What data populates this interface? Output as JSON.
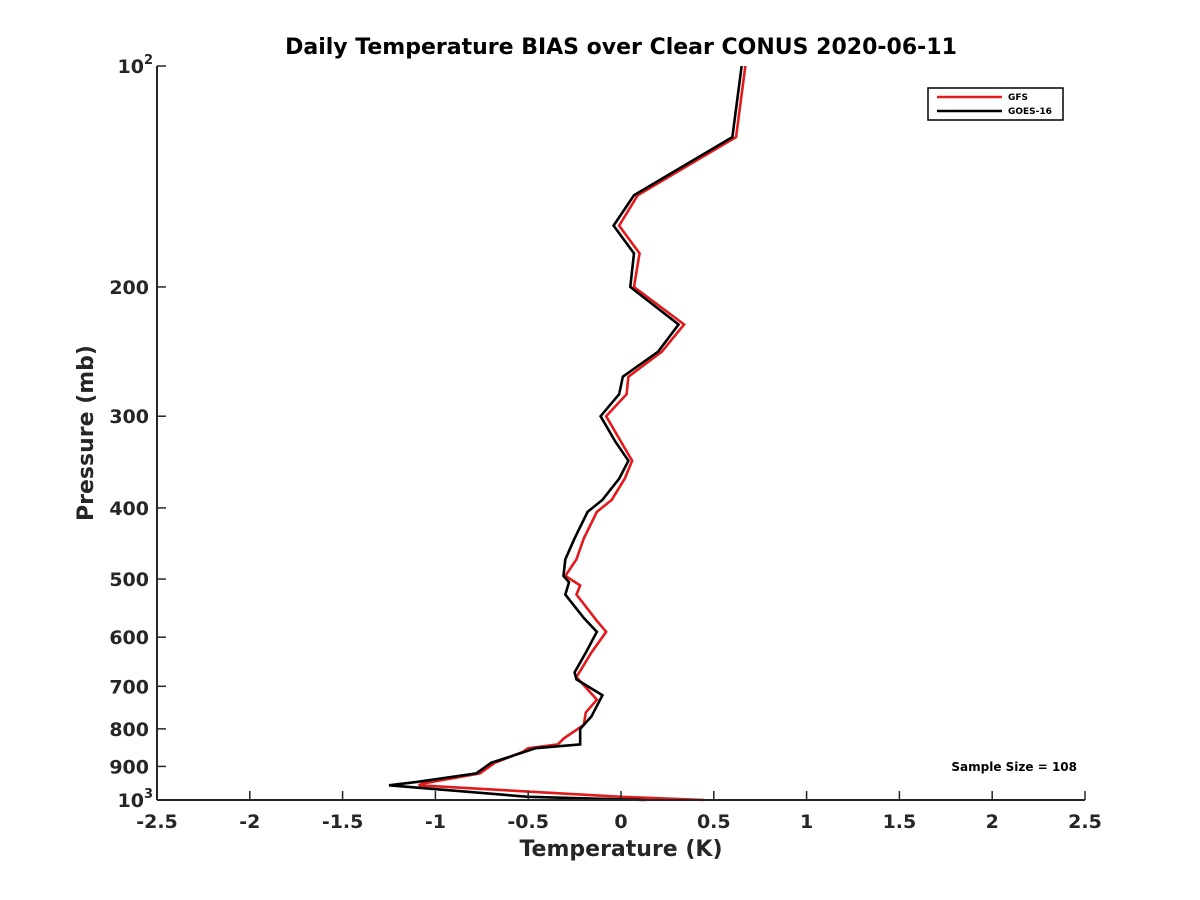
{
  "chart_data": {
    "type": "line",
    "title": "Daily Temperature BIAS over Clear CONUS 2020-06-11",
    "xlabel": "Temperature (K)",
    "ylabel": "Pressure (mb)",
    "xlim": [
      -2.5,
      2.5
    ],
    "ylim": [
      100,
      1000
    ],
    "y_scale": "log",
    "y_reversed": true,
    "x_ticks": [
      -2.5,
      -2,
      -1.5,
      -1,
      -0.5,
      0,
      0.5,
      1,
      1.5,
      2,
      2.5
    ],
    "x_tick_labels": [
      "-2.5",
      "-2",
      "-1.5",
      "-1",
      "-0.5",
      "0",
      "0.5",
      "1",
      "1.5",
      "2",
      "2.5"
    ],
    "y_ticks": [
      100,
      200,
      300,
      400,
      500,
      600,
      700,
      800,
      900,
      1000
    ],
    "y_tick_labels": [
      {
        "base": "10",
        "sup": "2"
      },
      {
        "base": "200",
        "sup": ""
      },
      {
        "base": "300",
        "sup": ""
      },
      {
        "base": "400",
        "sup": ""
      },
      {
        "base": "500",
        "sup": ""
      },
      {
        "base": "600",
        "sup": ""
      },
      {
        "base": "700",
        "sup": ""
      },
      {
        "base": "800",
        "sup": ""
      },
      {
        "base": "900",
        "sup": ""
      },
      {
        "base": "10",
        "sup": "3"
      }
    ],
    "grid": false,
    "legend_position": "top-right",
    "series": [
      {
        "name": "GFS",
        "color": "#e31a1c",
        "points": [
          [
            0.67,
            100
          ],
          [
            0.62,
            125
          ],
          [
            0.09,
            150
          ],
          [
            -0.01,
            165
          ],
          [
            0.1,
            180
          ],
          [
            0.07,
            200
          ],
          [
            0.34,
            225
          ],
          [
            0.22,
            245
          ],
          [
            0.04,
            265
          ],
          [
            0.03,
            280
          ],
          [
            -0.08,
            300
          ],
          [
            0.0,
            325
          ],
          [
            0.06,
            345
          ],
          [
            0.02,
            365
          ],
          [
            -0.05,
            390
          ],
          [
            -0.13,
            405
          ],
          [
            -0.2,
            440
          ],
          [
            -0.24,
            470
          ],
          [
            -0.3,
            495
          ],
          [
            -0.22,
            510
          ],
          [
            -0.24,
            525
          ],
          [
            -0.13,
            570
          ],
          [
            -0.08,
            590
          ],
          [
            -0.16,
            630
          ],
          [
            -0.24,
            680
          ],
          [
            -0.13,
            730
          ],
          [
            -0.19,
            760
          ],
          [
            -0.2,
            790
          ],
          [
            -0.31,
            825
          ],
          [
            -0.34,
            840
          ],
          [
            -0.5,
            850
          ],
          [
            -0.53,
            860
          ],
          [
            -0.68,
            890
          ],
          [
            -0.76,
            920
          ],
          [
            -1.07,
            950
          ],
          [
            -1.09,
            955
          ],
          [
            0.0,
            990
          ],
          [
            0.45,
            1000
          ]
        ]
      },
      {
        "name": "GOES-16",
        "color": "#000000",
        "points": [
          [
            0.65,
            100
          ],
          [
            0.6,
            125
          ],
          [
            0.07,
            150
          ],
          [
            -0.04,
            165
          ],
          [
            0.07,
            180
          ],
          [
            0.05,
            200
          ],
          [
            0.31,
            225
          ],
          [
            0.2,
            245
          ],
          [
            0.01,
            265
          ],
          [
            -0.01,
            280
          ],
          [
            -0.11,
            300
          ],
          [
            -0.03,
            325
          ],
          [
            0.04,
            345
          ],
          [
            -0.01,
            365
          ],
          [
            -0.1,
            390
          ],
          [
            -0.18,
            405
          ],
          [
            -0.25,
            440
          ],
          [
            -0.3,
            470
          ],
          [
            -0.31,
            495
          ],
          [
            -0.28,
            505
          ],
          [
            -0.3,
            525
          ],
          [
            -0.2,
            565
          ],
          [
            -0.13,
            590
          ],
          [
            -0.19,
            630
          ],
          [
            -0.25,
            670
          ],
          [
            -0.24,
            685
          ],
          [
            -0.1,
            720
          ],
          [
            -0.16,
            770
          ],
          [
            -0.22,
            800
          ],
          [
            -0.22,
            820
          ],
          [
            -0.22,
            840
          ],
          [
            -0.46,
            850
          ],
          [
            -0.52,
            860
          ],
          [
            -0.7,
            890
          ],
          [
            -0.78,
            920
          ],
          [
            -1.1,
            945
          ],
          [
            -1.25,
            955
          ],
          [
            -0.5,
            990
          ],
          [
            0.13,
            1000
          ]
        ]
      }
    ],
    "annotations": [
      "Sample Size = 108"
    ]
  }
}
